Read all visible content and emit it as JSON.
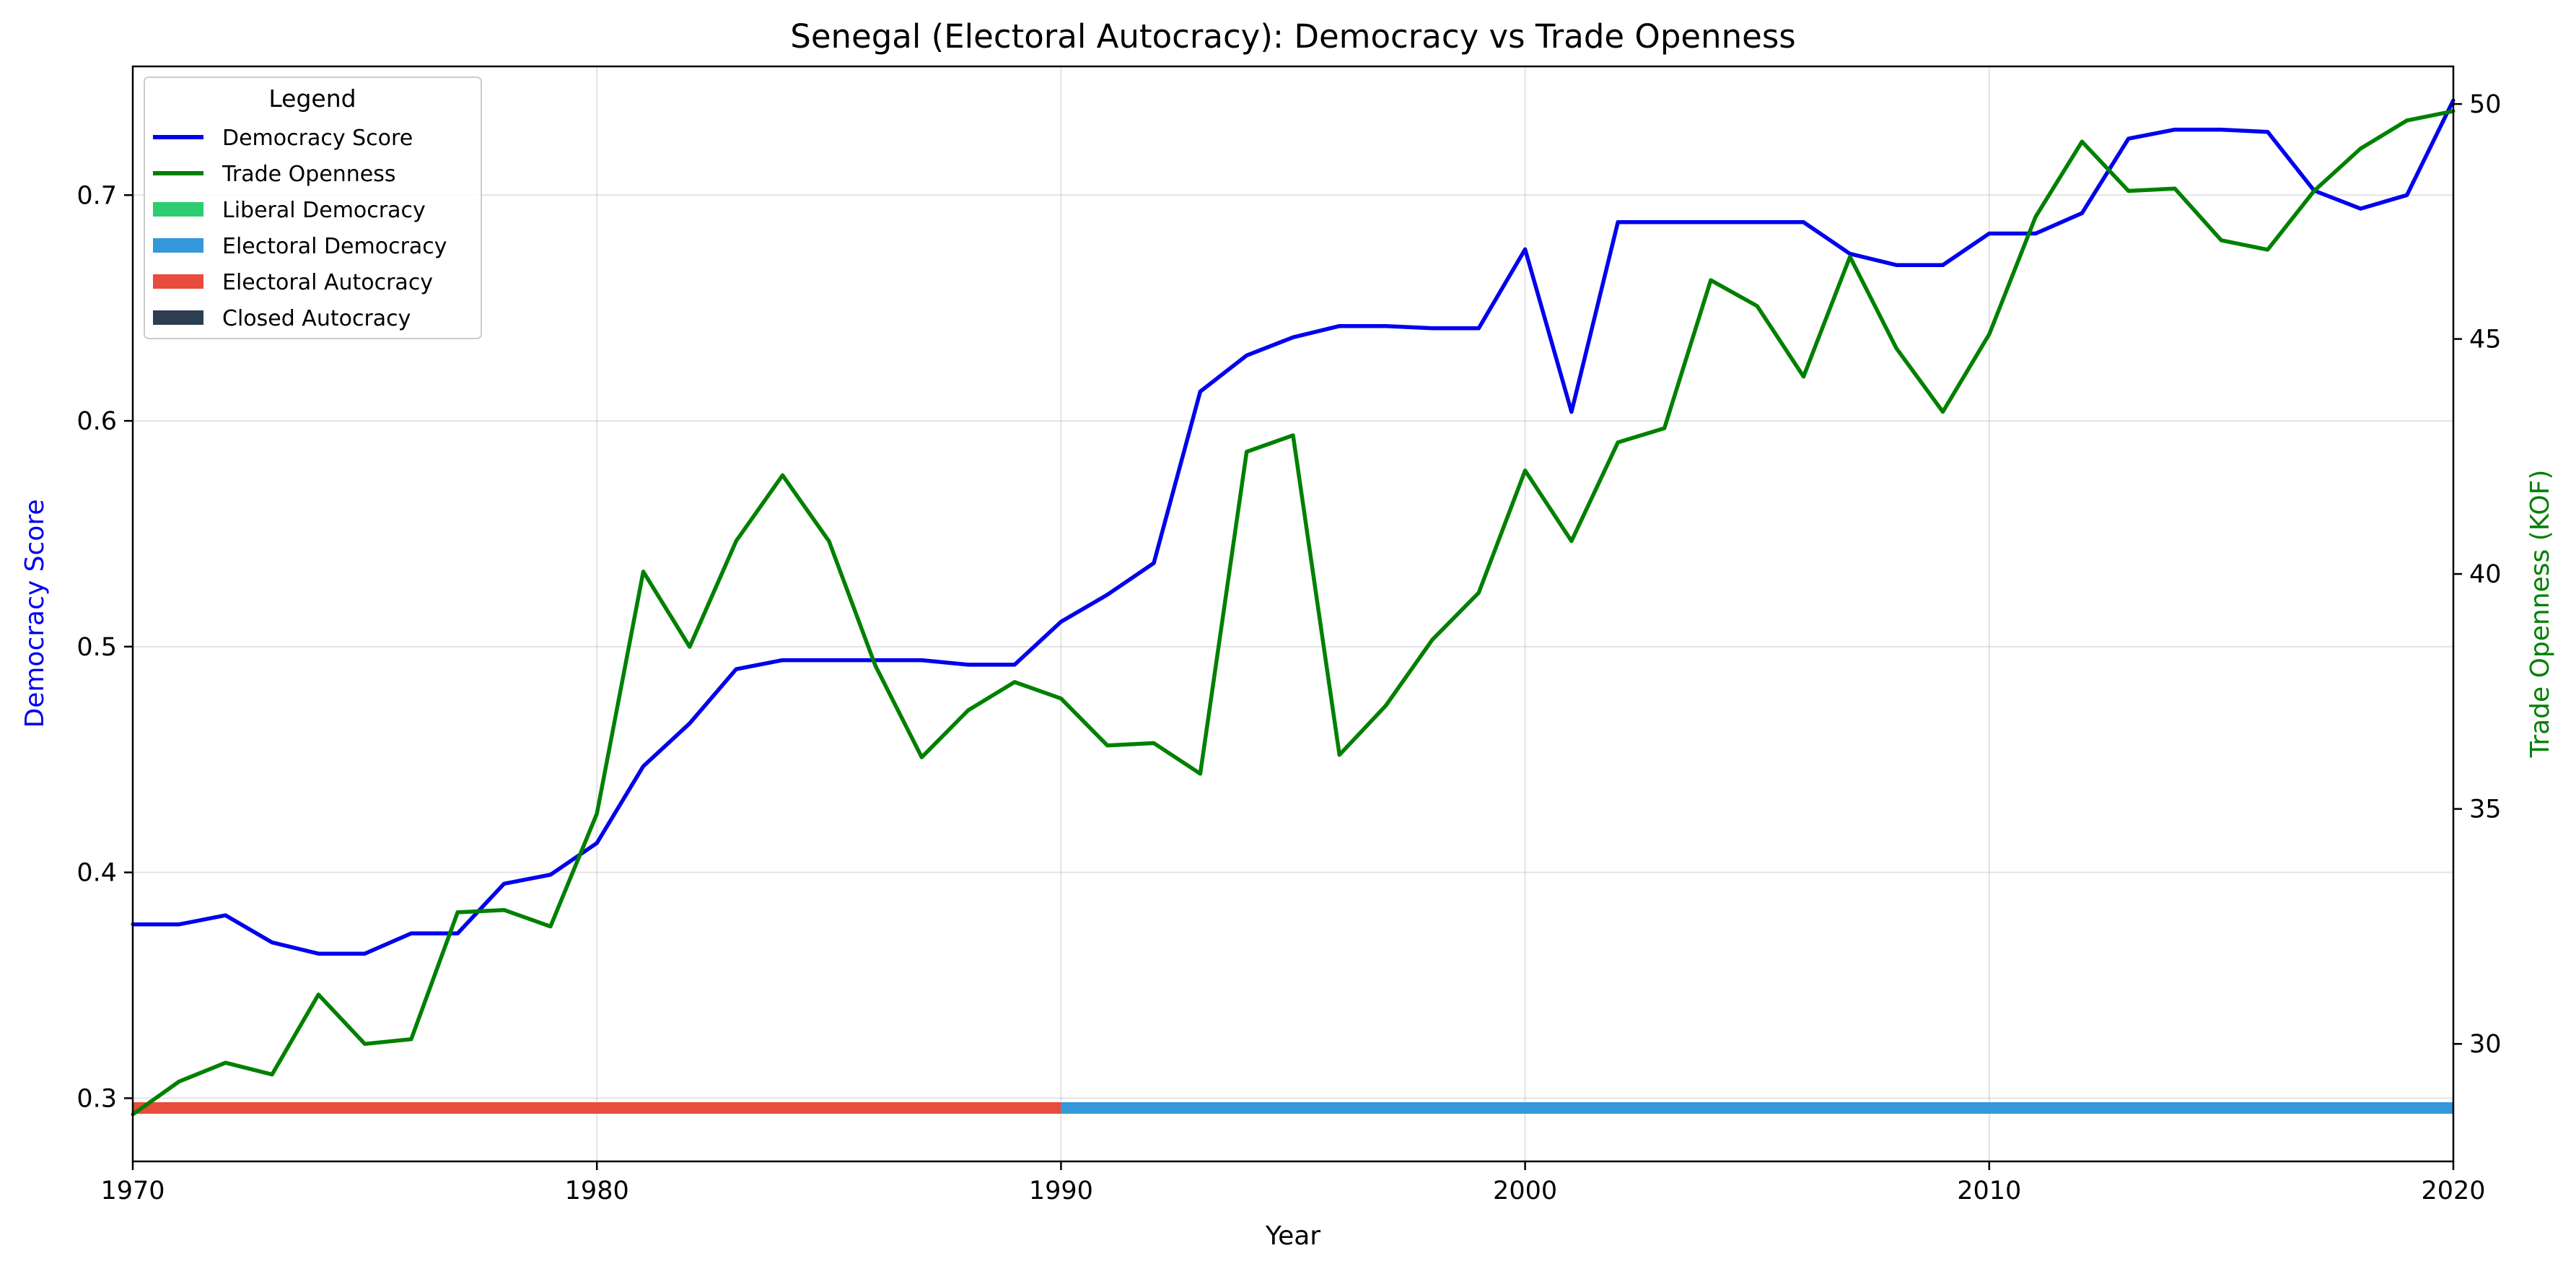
{
  "chart_data": {
    "type": "line",
    "title": "Senegal (Electoral Autocracy): Democracy vs Trade Openness",
    "xlabel": "Year",
    "ylabel_left": "Democracy Score",
    "ylabel_right": "Trade Openness (KOF)",
    "xlim": [
      1970,
      2020
    ],
    "ylim_left": [
      0.272,
      0.757
    ],
    "ylim_right": [
      27.5,
      50.8
    ],
    "x_ticks": [
      1970,
      1980,
      1990,
      2000,
      2010,
      2020
    ],
    "y_left_ticks": [
      0.3,
      0.4,
      0.5,
      0.6,
      0.7
    ],
    "y_right_ticks": [
      30,
      35,
      40,
      45,
      50
    ],
    "grid": true,
    "legend": {
      "title": "Legend",
      "placement": "top-left",
      "entries": [
        {
          "label": "Democracy Score",
          "type": "line",
          "color": "#0000ee"
        },
        {
          "label": "Trade Openness",
          "type": "line",
          "color": "#008000"
        },
        {
          "label": "Liberal Democracy",
          "type": "patch",
          "color": "#2ecc71"
        },
        {
          "label": "Electoral Democracy",
          "type": "patch",
          "color": "#3498db"
        },
        {
          "label": "Electoral Autocracy",
          "type": "patch",
          "color": "#e74c3c"
        },
        {
          "label": "Closed Autocracy",
          "type": "patch",
          "color": "#2c3e50"
        }
      ]
    },
    "x": [
      1970,
      1971,
      1972,
      1973,
      1974,
      1975,
      1976,
      1977,
      1978,
      1979,
      1980,
      1981,
      1982,
      1983,
      1984,
      1985,
      1986,
      1987,
      1988,
      1989,
      1990,
      1991,
      1992,
      1993,
      1994,
      1995,
      1996,
      1997,
      1998,
      1999,
      2000,
      2001,
      2002,
      2003,
      2004,
      2005,
      2006,
      2007,
      2008,
      2009,
      2010,
      2011,
      2012,
      2013,
      2014,
      2015,
      2016,
      2017,
      2018,
      2019,
      2020
    ],
    "series": [
      {
        "name": "Democracy Score",
        "axis": "left",
        "color": "#0000ee",
        "values": [
          0.377,
          0.377,
          0.381,
          0.369,
          0.364,
          0.364,
          0.373,
          0.373,
          0.395,
          0.399,
          0.413,
          0.447,
          0.466,
          0.49,
          0.494,
          0.494,
          0.494,
          0.494,
          0.492,
          0.492,
          0.511,
          0.523,
          0.537,
          0.613,
          0.629,
          0.637,
          0.642,
          0.642,
          0.641,
          0.641,
          0.676,
          0.604,
          0.688,
          0.688,
          0.688,
          0.688,
          0.688,
          0.674,
          0.669,
          0.669,
          0.683,
          0.683,
          0.692,
          0.725,
          0.729,
          0.729,
          0.728,
          0.702,
          0.694,
          0.7,
          0.742
        ]
      },
      {
        "name": "Trade Openness",
        "axis": "right",
        "color": "#008000",
        "values": [
          28.5,
          29.2,
          29.6,
          29.35,
          31.05,
          30.0,
          30.1,
          32.8,
          32.85,
          32.5,
          34.9,
          40.05,
          38.45,
          40.7,
          42.1,
          40.7,
          38.05,
          36.1,
          37.1,
          37.7,
          37.35,
          36.35,
          36.4,
          35.75,
          42.6,
          42.95,
          36.15,
          37.2,
          38.6,
          39.6,
          42.2,
          40.7,
          42.8,
          43.1,
          46.25,
          45.7,
          44.2,
          46.75,
          44.8,
          43.45,
          45.1,
          47.6,
          49.2,
          48.15,
          48.2,
          47.1,
          46.9,
          48.15,
          49.05,
          49.65,
          49.85
        ]
      }
    ],
    "regime_bands": [
      {
        "label": "Electoral Autocracy",
        "start": 1970,
        "end": 1990,
        "color": "#e74c3c"
      },
      {
        "label": "Electoral Democracy",
        "start": 1990,
        "end": 2020,
        "color": "#3498db"
      }
    ]
  }
}
